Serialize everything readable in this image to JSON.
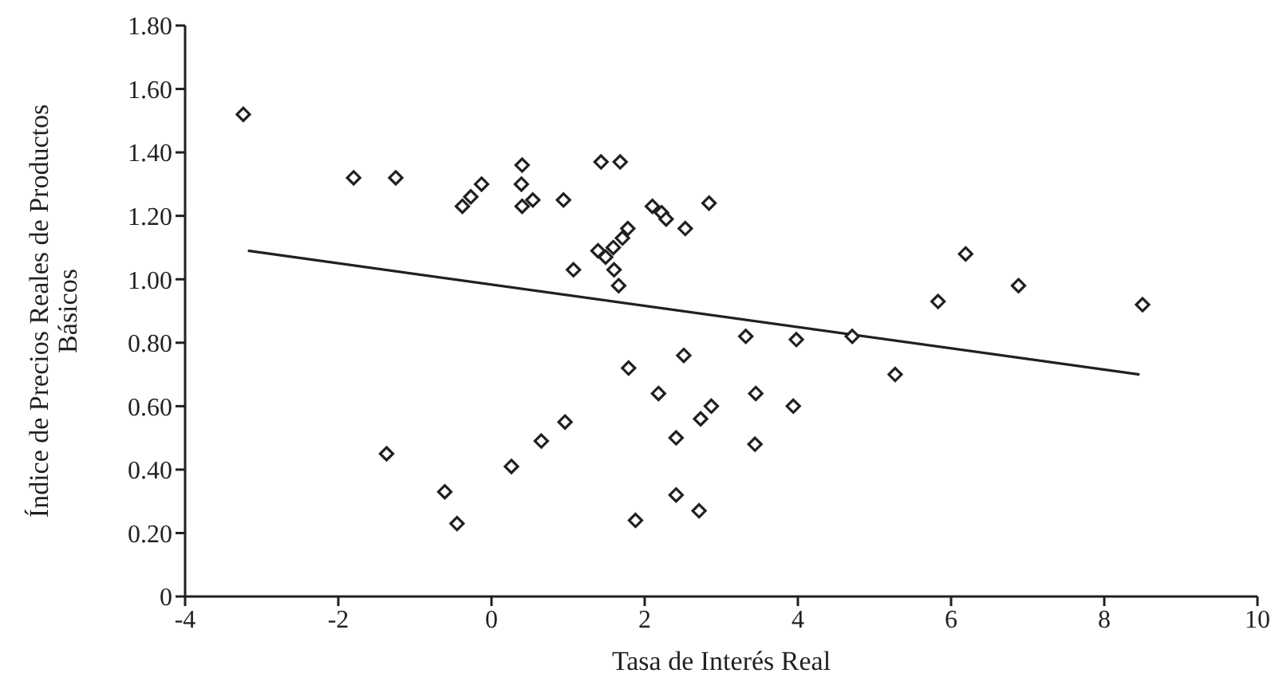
{
  "chart_data": {
    "type": "scatter",
    "xlabel": "Tasa de Interés Real",
    "ylabel": "Índice de Precios Reales de Productos Básicos",
    "xlim": [
      -4,
      10
    ],
    "xticks": [
      -4,
      -2,
      0,
      2,
      4,
      6,
      8,
      10
    ],
    "ylim": [
      0,
      1.8
    ],
    "yticks": [
      {
        "value": 0,
        "label": "0"
      },
      {
        "value": 0.2,
        "label": "0.20"
      },
      {
        "value": 0.4,
        "label": "0.40"
      },
      {
        "value": 0.6,
        "label": "0.60"
      },
      {
        "value": 0.8,
        "label": "0.80"
      },
      {
        "value": 1,
        "label": "1.00"
      },
      {
        "value": 1.2,
        "label": "1.20"
      },
      {
        "value": 1.4,
        "label": "1.40"
      },
      {
        "value": 1.6,
        "label": "1.60"
      },
      {
        "value": 1.8,
        "label": "1.80"
      }
    ],
    "series": [
      {
        "marker": "diamond",
        "color": "#231f20",
        "x": [
          -3.24,
          -1.8,
          -1.25,
          -0.38,
          -0.27,
          -0.13,
          0.4,
          0.39,
          0.4,
          0.54,
          0.94,
          1.07,
          1.43,
          1.68,
          1.39,
          1.49,
          1.59,
          1.6,
          1.66,
          1.71,
          1.78,
          2.1,
          2.22,
          2.28,
          2.53,
          2.84,
          -1.37,
          -0.61,
          -0.45,
          0.26,
          0.65,
          0.96,
          1.79,
          1.88,
          2.18,
          2.51,
          2.41,
          2.41,
          2.71,
          2.73,
          2.87,
          3.32,
          3.45,
          3.44,
          3.94,
          3.98,
          4.71,
          5.27,
          5.83,
          6.19,
          6.88,
          8.5
        ],
        "values": [
          1.52,
          1.32,
          1.32,
          1.23,
          1.26,
          1.3,
          1.36,
          1.3,
          1.23,
          1.25,
          1.25,
          1.03,
          1.37,
          1.37,
          1.09,
          1.07,
          1.1,
          1.03,
          0.98,
          1.13,
          1.16,
          1.23,
          1.21,
          1.19,
          1.16,
          1.24,
          0.45,
          0.33,
          0.23,
          0.41,
          0.49,
          0.55,
          0.72,
          0.24,
          0.64,
          0.76,
          0.5,
          0.32,
          0.27,
          0.56,
          0.6,
          0.82,
          0.64,
          0.48,
          0.6,
          0.81,
          0.82,
          0.7,
          0.93,
          1.08,
          0.98,
          0.92
        ]
      },
      {
        "type": "line",
        "marker": "none",
        "color": "#231f20",
        "x": [
          -3.18,
          8.46
        ],
        "values": [
          1.09,
          0.7
        ]
      }
    ]
  }
}
